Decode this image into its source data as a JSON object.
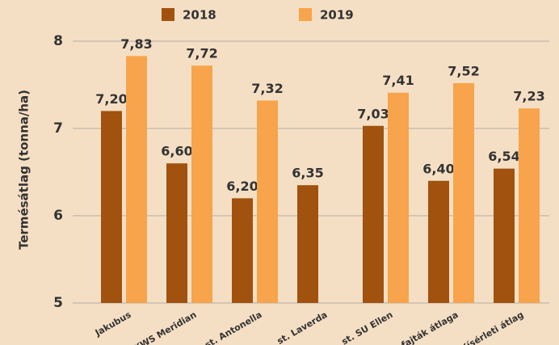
{
  "chart_data": {
    "type": "bar",
    "y_label": "Termésátlag (tonna/ha)",
    "categories": [
      "Jakubus",
      "st. KWS Meridian",
      "st. Antonella",
      "st. Laverda",
      "st. SU Ellen",
      "St. fajták átlaga",
      "Kísérleti átlag"
    ],
    "series": [
      {
        "name": "2018",
        "color": "#a0520e",
        "values": [
          7.2,
          6.6,
          6.2,
          6.35,
          7.03,
          6.4,
          6.54
        ],
        "value_labels": [
          "7,20",
          "6,60",
          "6,20",
          "6,35",
          "7,03",
          "6,40",
          "6,54"
        ]
      },
      {
        "name": "2019",
        "color": "#f7a44c",
        "values": [
          7.83,
          7.72,
          7.32,
          null,
          7.41,
          7.52,
          7.23
        ],
        "value_labels": [
          "7,83",
          "7,72",
          "7,32",
          null,
          "7,41",
          "7,52",
          "7,23"
        ]
      }
    ],
    "ylim": [
      5,
      8
    ],
    "yticks": [
      5,
      6,
      7,
      8
    ],
    "grid": true,
    "legend": "top"
  }
}
